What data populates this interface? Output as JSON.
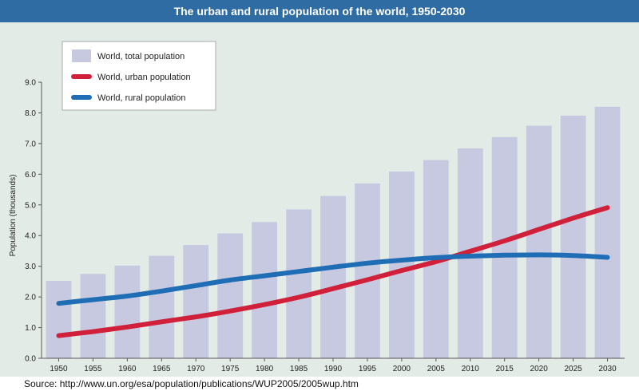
{
  "header": {
    "title": "The urban and rural population of the world, 1950-2030"
  },
  "footer": {
    "source": "Source: http://www.un.org/esa/population/publications/WUP2005/2005wup.htm"
  },
  "chart_data": {
    "type": "bar",
    "title": "The urban and rural population of the world, 1950-2030",
    "xlabel": "",
    "ylabel": "Population (thousands)",
    "ylim": [
      0,
      9
    ],
    "yticks": [
      "0.0",
      "1.0",
      "2.0",
      "3.0",
      "4.0",
      "5.0",
      "6.0",
      "7.0",
      "8.0",
      "9.0"
    ],
    "grid": false,
    "legend_position": "top-left",
    "categories": [
      "1950",
      "1955",
      "1960",
      "1965",
      "1970",
      "1975",
      "1980",
      "1985",
      "1990",
      "1995",
      "2000",
      "2005",
      "2010",
      "2015",
      "2020",
      "2025",
      "2030"
    ],
    "series": [
      {
        "name": "World, total population",
        "type": "bar",
        "color": "#c6c9e0",
        "values": [
          2.52,
          2.75,
          3.02,
          3.34,
          3.69,
          4.07,
          4.44,
          4.85,
          5.29,
          5.7,
          6.09,
          6.46,
          6.84,
          7.21,
          7.58,
          7.91,
          8.2
        ]
      },
      {
        "name": "World, urban population",
        "type": "line",
        "color": "#d0203a",
        "values": [
          0.74,
          0.87,
          1.02,
          1.19,
          1.35,
          1.54,
          1.75,
          1.99,
          2.27,
          2.56,
          2.86,
          3.15,
          3.49,
          3.83,
          4.2,
          4.57,
          4.91
        ]
      },
      {
        "name": "World, rural population",
        "type": "line",
        "color": "#1e6db5",
        "values": [
          1.79,
          1.91,
          2.03,
          2.19,
          2.37,
          2.55,
          2.69,
          2.83,
          2.97,
          3.1,
          3.2,
          3.28,
          3.33,
          3.36,
          3.37,
          3.35,
          3.29
        ]
      }
    ]
  }
}
